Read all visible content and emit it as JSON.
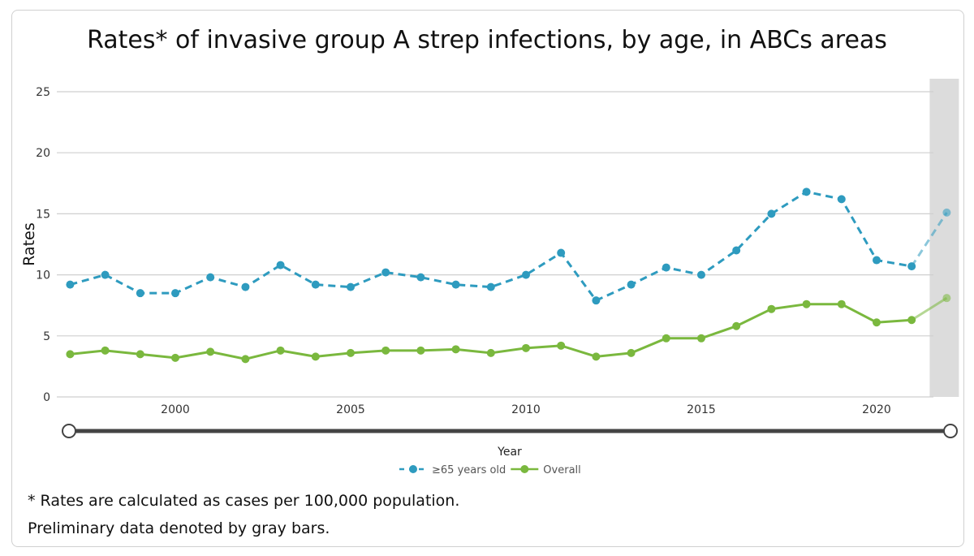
{
  "chart_data": {
    "type": "line",
    "title": "Rates* of invasive group A strep infections, by age, in ABCs areas",
    "xlabel": "Year",
    "ylabel": "Rates",
    "ylim": [
      0,
      25
    ],
    "yticks": [
      "0",
      "5",
      "10",
      "15",
      "20",
      "25"
    ],
    "xticks": [
      "2000",
      "2005",
      "2010",
      "2015",
      "2020"
    ],
    "grid": "horizontal",
    "legend_placement": "bottom",
    "x": [
      1997,
      1998,
      1999,
      2000,
      2001,
      2002,
      2003,
      2004,
      2005,
      2006,
      2007,
      2008,
      2009,
      2010,
      2011,
      2012,
      2013,
      2014,
      2015,
      2016,
      2017,
      2018,
      2019,
      2020,
      2021,
      2022
    ],
    "preliminary_x": [
      2022
    ],
    "series": [
      {
        "name": "≥65 years old",
        "color": "#2e9bbf",
        "style": "dashed",
        "values": [
          9.2,
          10.0,
          8.5,
          8.5,
          9.8,
          9.0,
          10.8,
          9.2,
          9.0,
          10.2,
          9.8,
          9.2,
          9.0,
          10.0,
          11.8,
          7.9,
          9.2,
          10.6,
          10.0,
          12.0,
          15.0,
          16.8,
          16.2,
          11.2,
          10.7,
          15.1
        ]
      },
      {
        "name": "Overall",
        "color": "#7ab83e",
        "style": "solid",
        "values": [
          3.5,
          3.8,
          3.5,
          3.2,
          3.7,
          3.1,
          3.8,
          3.3,
          3.6,
          3.8,
          3.8,
          3.9,
          3.6,
          4.0,
          4.2,
          3.3,
          3.6,
          4.8,
          4.8,
          5.8,
          7.2,
          7.6,
          7.6,
          6.1,
          6.3,
          8.1
        ]
      }
    ]
  },
  "footnotes": {
    "line1": "* Rates are calculated as cases per 100,000 population.",
    "line2": "Preliminary data denoted by gray bars."
  }
}
